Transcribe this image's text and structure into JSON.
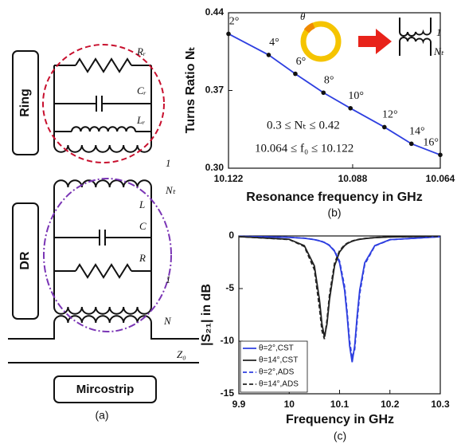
{
  "panel_a": {
    "caption": "(a)",
    "ring_label": "Ring",
    "dr_label": "DR",
    "microstrip_label": "Mircostrip",
    "components": [
      "Rᵣ",
      "Cᵣ",
      "Lᵣ",
      "1",
      "Nₜ",
      "L",
      "C",
      "R",
      "1",
      "N",
      "Z₀"
    ]
  },
  "chart_data": [
    {
      "type": "line",
      "caption": "(b)",
      "xlabel": "Resonance frequency in GHz",
      "ylabel": "Turns Ratio Nₜ",
      "xlim": [
        10.122,
        10.064
      ],
      "xticks": [
        10.122,
        10.088,
        10.064
      ],
      "ylim": [
        0.3,
        0.44
      ],
      "yticks": [
        {
          "value": 0.3,
          "label": "0.30"
        },
        0.37,
        0.44
      ],
      "x": [
        10.122,
        10.111,
        10.1037,
        10.096,
        10.0886,
        10.0793,
        10.0719,
        10.064
      ],
      "markers": true,
      "marker_color": "#111",
      "series": [
        {
          "color": "#2e3fe0",
          "dash": "solid",
          "values": [
            0.421,
            0.402,
            0.385,
            0.368,
            0.354,
            0.337,
            0.322,
            0.312
          ],
          "point_labels": [
            "2°",
            "4°",
            "6°",
            "8°",
            "10°",
            "12°",
            "14°",
            "16°"
          ]
        }
      ],
      "annotations": [
        "0.3 ≤ Nₜ ≤ 0.42",
        "10.064 ≤ f₀ ≤ 10.122"
      ],
      "inset_labels": [
        "θ",
        "1",
        "Nₜ"
      ]
    },
    {
      "type": "line",
      "caption": "(c)",
      "xlabel": "Frequency in GHz",
      "ylabel": "|S₂₁| in dB",
      "xlim": [
        9.9,
        10.3
      ],
      "xticks": [
        9.9,
        10,
        10.1,
        10.2,
        10.3
      ],
      "ylim": [
        -15,
        0
      ],
      "yticks": [
        0,
        -5,
        -10,
        -15
      ],
      "legend": "lower left",
      "x": [
        9.9,
        10,
        10.03,
        10.05,
        10.06,
        10.065,
        10.07,
        10.075,
        10.08,
        10.09,
        10.1,
        10.11,
        10.115,
        10.12,
        10.125,
        10.13,
        10.135,
        10.14,
        10.15,
        10.17,
        10.2,
        10.3
      ],
      "series": [
        {
          "name": "θ=2°,CST",
          "color": "#2e3fe0",
          "dash": "solid",
          "values": [
            -0.04,
            -0.13,
            -0.22,
            -0.35,
            -0.46,
            -0.54,
            -0.63,
            -0.76,
            -0.92,
            -1.45,
            -2.55,
            -5.15,
            -7.55,
            -10.45,
            -12,
            -10.45,
            -7.55,
            -5.15,
            -2.55,
            -0.92,
            -0.35,
            -0.07
          ]
        },
        {
          "name": "θ=14°,CST",
          "color": "#222222",
          "dash": "solid",
          "values": [
            -0.06,
            -0.32,
            -0.92,
            -2.85,
            -6.04,
            -8.36,
            -9.6,
            -8.36,
            -6.04,
            -2.85,
            -1.52,
            -0.92,
            -0.74,
            -0.61,
            -0.51,
            -0.43,
            -0.37,
            -0.32,
            -0.25,
            -0.16,
            -0.095,
            -0.03
          ]
        },
        {
          "name": "θ=2°,ADS",
          "color": "#2e3fe0",
          "dash": "dashed",
          "values": [
            -0.04,
            -0.13,
            -0.21,
            -0.34,
            -0.45,
            -0.52,
            -0.61,
            -0.74,
            -0.89,
            -1.4,
            -2.4,
            -4.8,
            -7.2,
            -10.0,
            -11.6,
            -10.8,
            -8.0,
            -5.5,
            -2.7,
            -0.95,
            -0.36,
            -0.07
          ]
        },
        {
          "name": "θ=14°,ADS",
          "color": "#222222",
          "dash": "dashed",
          "values": [
            -0.06,
            -0.34,
            -1.0,
            -3.2,
            -6.8,
            -9.0,
            -9.8,
            -8.0,
            -5.6,
            -2.6,
            -1.4,
            -0.85,
            -0.69,
            -0.57,
            -0.48,
            -0.41,
            -0.35,
            -0.3,
            -0.24,
            -0.15,
            -0.09,
            -0.03
          ]
        }
      ]
    }
  ]
}
